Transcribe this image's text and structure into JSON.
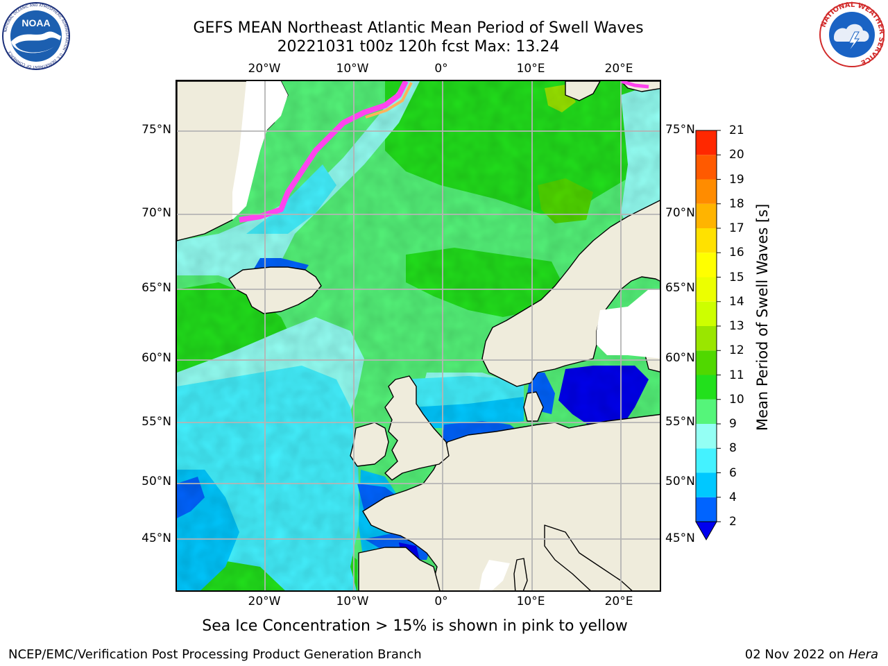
{
  "title": {
    "line1": "GEFS MEAN Northeast Atlantic Mean Period of Swell Waves",
    "line2": "20221031 t00z 120h fcst   Max: 13.24"
  },
  "map": {
    "longitude_labels": [
      "20°W",
      "10°W",
      "0°",
      "10°E",
      "20°E"
    ],
    "latitude_labels": [
      "75°N",
      "70°N",
      "65°N",
      "60°N",
      "55°N",
      "50°N",
      "45°N"
    ],
    "colors": {
      "land": "#efecdc",
      "ice_free_white": "#ffffff",
      "grid": "#b4b4b4",
      "coast": "#000000",
      "ice_pink": "#ff44ee",
      "ice_orange": "#ffb35a"
    }
  },
  "colorbar": {
    "label": "Mean Period of Swell Waves [s]",
    "tick_labels": [
      "2",
      "4",
      "6",
      "8",
      "9",
      "10",
      "11",
      "12",
      "13",
      "14",
      "15",
      "16",
      "17",
      "18",
      "19",
      "20",
      "21"
    ],
    "colors": [
      "#0064ff",
      "#00c8ff",
      "#44f2ff",
      "#94fff4",
      "#55f57a",
      "#22e01c",
      "#50d800",
      "#9ae600",
      "#cdff00",
      "#ecff00",
      "#ffff00",
      "#ffe100",
      "#ffb400",
      "#ff8c00",
      "#ff5a00",
      "#ff2800",
      "#ff0000"
    ],
    "under_color": "#0000ee"
  },
  "ice_note": "Sea Ice Concentration > 15% is shown in pink to yellow",
  "footer": {
    "left": "NCEP/EMC/Verification Post Processing Product Generation Branch",
    "date": "02 Nov 2022 on ",
    "host": "Hera"
  },
  "logos": {
    "noaa": "NOAA",
    "noaa_ring": "NATIONAL OCEANIC AND ATMOSPHERIC ADMINISTRATION · U.S. DEPARTMENT OF COMMERCE",
    "nws_ring": "NATIONAL WEATHER SERVICE"
  }
}
